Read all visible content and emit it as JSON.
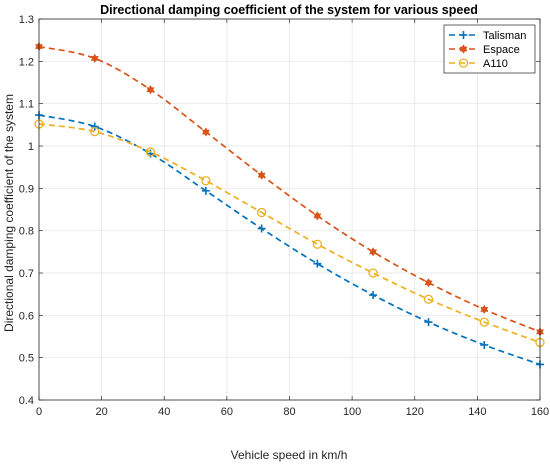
{
  "chart_data": {
    "type": "line",
    "title": "Directional damping coefficient of the system for various speed",
    "xlabel": "Vehicle speed in km/h",
    "ylabel": "Directional damping coefficient of the system",
    "xlim": [
      0,
      160
    ],
    "ylim": [
      0.4,
      1.3
    ],
    "xticks": [
      0,
      20,
      40,
      60,
      80,
      100,
      120,
      140,
      160
    ],
    "xtick_labels": [
      "0",
      "20",
      "40",
      "60",
      "80",
      "100",
      "120",
      "140",
      "160"
    ],
    "yticks": [
      0.4,
      0.5,
      0.6,
      0.7,
      0.8,
      0.9,
      1.0,
      1.1,
      1.2,
      1.3
    ],
    "ytick_labels": [
      "0.4",
      "0.5",
      "0.6",
      "0.7",
      "0.8",
      "0.9",
      "1",
      "1.1",
      "1.2",
      "1.3"
    ],
    "grid": true,
    "legend_position": "top-right",
    "x": [
      0,
      17.8,
      35.6,
      53.3,
      71.1,
      88.9,
      106.7,
      124.4,
      142.2,
      160
    ],
    "series": [
      {
        "name": "Talisman",
        "color": "#0072BD",
        "marker": "plus",
        "values": [
          1.073,
          1.046,
          0.982,
          0.894,
          0.805,
          0.722,
          0.648,
          0.584,
          0.53,
          0.484
        ]
      },
      {
        "name": "Espace",
        "color": "#D95319",
        "marker": "hexagram",
        "values": [
          1.235,
          1.207,
          1.133,
          1.033,
          0.931,
          0.835,
          0.75,
          0.677,
          0.614,
          0.561
        ]
      },
      {
        "name": "A110",
        "color": "#EDB120",
        "marker": "circle",
        "values": [
          1.052,
          1.034,
          0.986,
          0.918,
          0.843,
          0.768,
          0.7,
          0.638,
          0.584,
          0.536
        ]
      }
    ]
  }
}
